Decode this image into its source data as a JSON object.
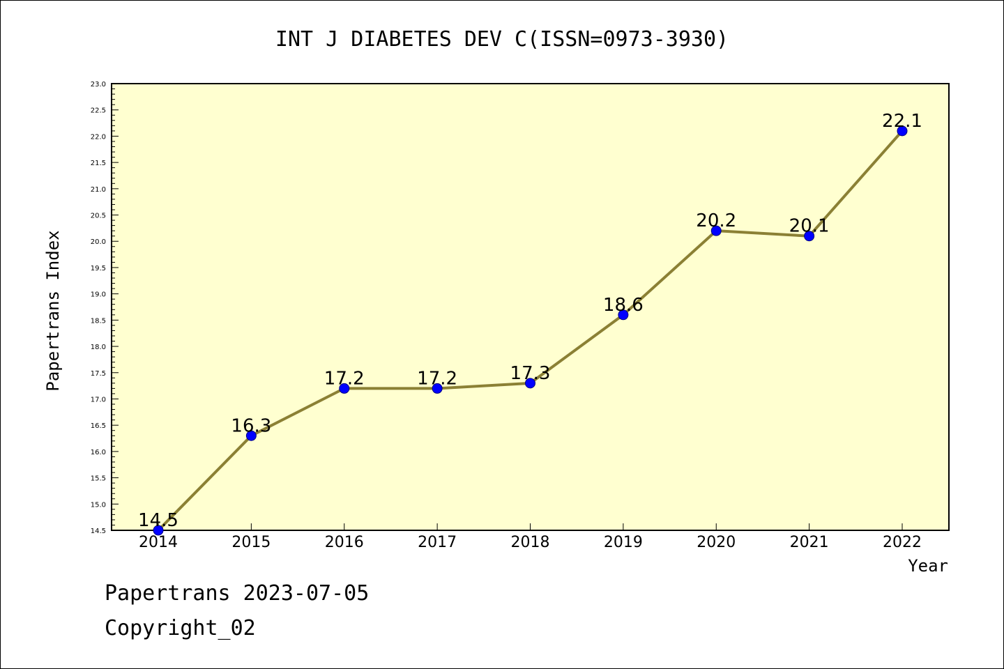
{
  "chart_data": {
    "type": "line",
    "title": "INT J DIABETES DEV C(ISSN=0973-3930)",
    "xlabel": "Year",
    "ylabel": "Papertrans Index",
    "categories": [
      "2014",
      "2015",
      "2016",
      "2017",
      "2018",
      "2019",
      "2020",
      "2021",
      "2022"
    ],
    "values": [
      14.5,
      16.3,
      17.2,
      17.2,
      17.3,
      18.6,
      20.2,
      20.1,
      22.1
    ],
    "data_labels": [
      "14.5",
      "16.3",
      "17.2",
      "17.2",
      "17.3",
      "18.6",
      "20.2",
      "20.1",
      "22.1"
    ],
    "ylim": [
      14.5,
      23.0
    ],
    "yticks": [
      "14.5",
      "15.0",
      "15.5",
      "16.0",
      "16.5",
      "17.0",
      "17.5",
      "18.0",
      "18.5",
      "19.0",
      "19.5",
      "20.0",
      "20.5",
      "21.0",
      "21.5",
      "22.0",
      "22.5",
      "23.0"
    ],
    "grid": false,
    "legend": "none",
    "colors": {
      "plot_background": "#ffffd0",
      "line": "#8b8034",
      "marker": "#0000ff",
      "marker_edge": "#000080"
    }
  },
  "footer": {
    "line1": "Papertrans 2023-07-05",
    "line2": "Copyright_02"
  }
}
